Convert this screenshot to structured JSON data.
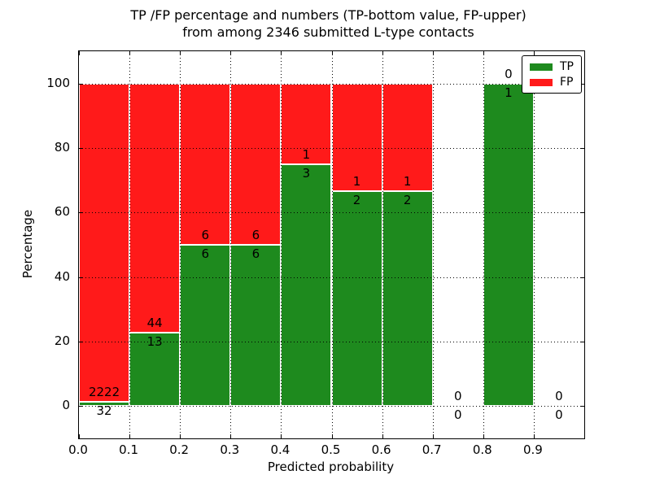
{
  "chart_data": {
    "type": "bar",
    "stacked": true,
    "title_line1": "TP /FP percentage and numbers (TP-bottom value, FP-upper)",
    "title_line2": "from among 2346 submitted L-type contacts",
    "xlabel": "Predicted probability",
    "ylabel": "Percentage",
    "total_contacts": 2346,
    "xlim": [
      0.0,
      1.0
    ],
    "ylim": [
      -10,
      110
    ],
    "grid": true,
    "legend_position": "upper right",
    "xticks": [
      "0.0",
      "0.1",
      "0.2",
      "0.3",
      "0.4",
      "0.5",
      "0.6",
      "0.7",
      "0.8",
      "0.9"
    ],
    "yticks": [
      0,
      20,
      40,
      60,
      80,
      100
    ],
    "bins": [
      {
        "x0": 0.0,
        "x1": 0.1,
        "tp": 32,
        "fp": 2222
      },
      {
        "x0": 0.1,
        "x1": 0.2,
        "tp": 13,
        "fp": 44
      },
      {
        "x0": 0.2,
        "x1": 0.3,
        "tp": 6,
        "fp": 6
      },
      {
        "x0": 0.3,
        "x1": 0.4,
        "tp": 6,
        "fp": 6
      },
      {
        "x0": 0.4,
        "x1": 0.5,
        "tp": 3,
        "fp": 1
      },
      {
        "x0": 0.5,
        "x1": 0.6,
        "tp": 2,
        "fp": 1
      },
      {
        "x0": 0.6,
        "x1": 0.7,
        "tp": 2,
        "fp": 1
      },
      {
        "x0": 0.7,
        "x1": 0.8,
        "tp": 0,
        "fp": 0
      },
      {
        "x0": 0.8,
        "x1": 0.9,
        "tp": 1,
        "fp": 0
      },
      {
        "x0": 0.9,
        "x1": 1.0,
        "tp": 0,
        "fp": 0
      }
    ],
    "legend": [
      {
        "label": "TP",
        "color": "#1E8A1E"
      },
      {
        "label": "FP",
        "color": "#FF1A1A"
      }
    ],
    "colors": {
      "tp_green": "#1E8A1E",
      "fp_red": "#FF1A1A",
      "bar_edge": "#ffffff",
      "axis": "#000000",
      "background": "#ffffff"
    }
  }
}
